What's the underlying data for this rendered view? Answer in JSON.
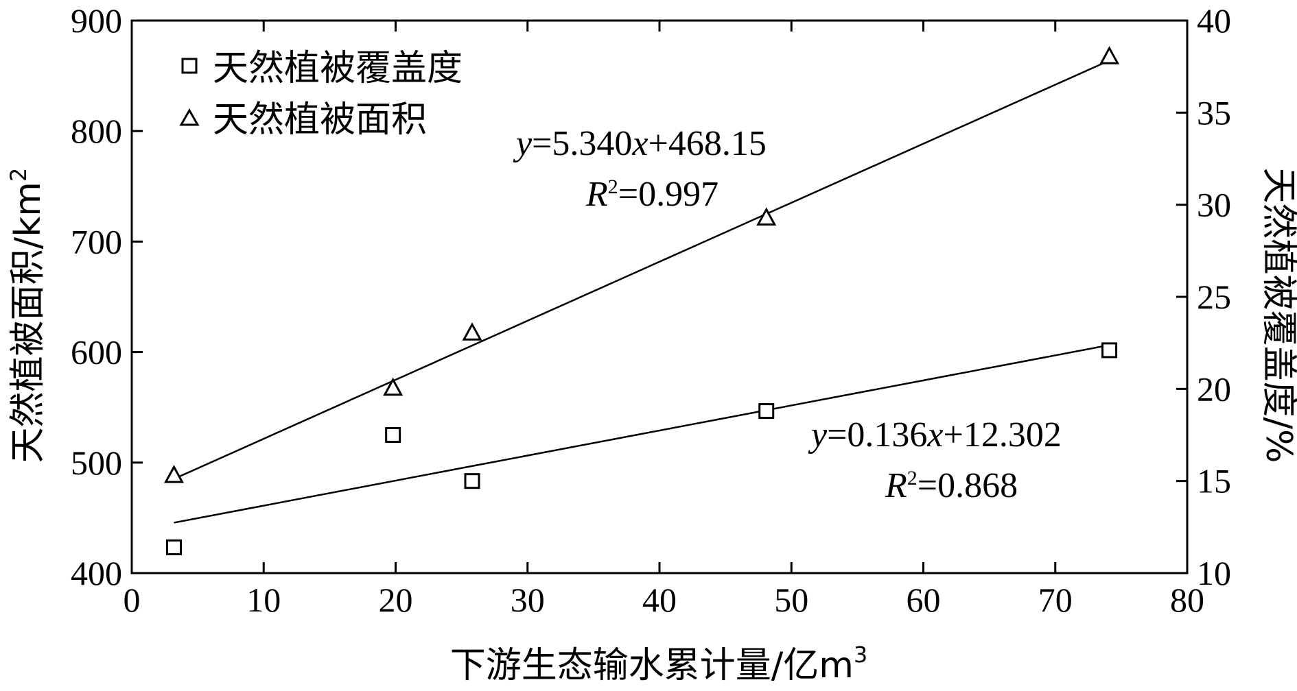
{
  "chart_data": {
    "type": "scatter",
    "xlabel": "下游生态输水累计量/亿m",
    "xlabel_sup": "3",
    "ylabel_left": "天然植被面积/km",
    "ylabel_left_sup": "2",
    "ylabel_right": "天然植被覆盖度/%",
    "xlim": [
      0,
      80
    ],
    "ylim_left": [
      400,
      900
    ],
    "ylim_right": [
      10,
      40
    ],
    "x_ticks": [
      0,
      10,
      20,
      30,
      40,
      50,
      60,
      70,
      80
    ],
    "y_left_ticks": [
      400,
      500,
      600,
      700,
      800,
      900
    ],
    "y_right_ticks": [
      10,
      15,
      20,
      25,
      30,
      35,
      40
    ],
    "grid": false,
    "legend_position": "top-left",
    "series": [
      {
        "name": "天然植被覆盖度",
        "axis": "right",
        "marker": "square",
        "x": [
          3.2,
          19.8,
          25.8,
          48.1,
          74.1
        ],
        "y": [
          11.4,
          17.5,
          15.0,
          18.8,
          22.1
        ],
        "fit": {
          "slope": 0.136,
          "intercept": 12.302,
          "x_range": [
            3.2,
            74.1
          ]
        },
        "equation": {
          "y": "y",
          "rhs": "=0.136",
          "x": "x",
          "rest": "+12.302",
          "r": "R",
          "sup": "2",
          "r2": "=0.868"
        }
      },
      {
        "name": "天然植被面积",
        "axis": "left",
        "marker": "triangle",
        "x": [
          3.2,
          19.8,
          25.8,
          48.1,
          74.1
        ],
        "y": [
          488,
          567,
          617,
          721,
          867
        ],
        "fit": {
          "slope": 5.34,
          "intercept": 468.15,
          "x_range": [
            3.2,
            74.1
          ]
        },
        "equation": {
          "y": "y",
          "rhs": "=5.340",
          "x": "x",
          "rest": "+468.15",
          "r": "R",
          "sup": "2",
          "r2": "=0.997"
        }
      }
    ]
  }
}
